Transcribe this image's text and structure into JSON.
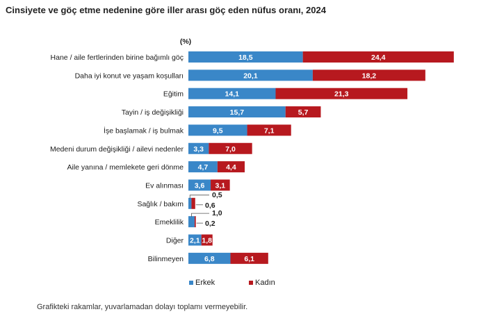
{
  "chart_data": {
    "type": "bar",
    "orientation": "horizontal",
    "stacked": true,
    "title": "Cinsiyete ve göç etme nedenine göre iller arası göç eden nüfus oranı, 2024",
    "unit_label": "(%)",
    "categories": [
      "Hane / aile fertlerinden birine bağımlı göç",
      "Daha iyi konut ve yaşam koşulları",
      "Eğitim",
      "Tayin / iş değişikliği",
      "İşe başlamak / iş bulmak",
      "Medeni durum değişikliği / ailevi nedenler",
      "Aile yanına / memlekete geri dönme",
      "Ev alınması",
      "Sağlık / bakım",
      "Emeklilik",
      "Diğer",
      "Bilinmeyen"
    ],
    "series": [
      {
        "name": "Erkek",
        "color": "#3a87c8",
        "values": [
          18.5,
          20.1,
          14.1,
          15.7,
          9.5,
          3.3,
          4.7,
          3.6,
          0.5,
          1.0,
          2.1,
          6.8
        ],
        "labels": [
          "18,5",
          "20,1",
          "14,1",
          "15,7",
          "9,5",
          "3,3",
          "4,7",
          "3,6",
          "0,5",
          "1,0",
          "2,1",
          "6,8"
        ]
      },
      {
        "name": "Kadın",
        "color": "#b7191f",
        "values": [
          24.4,
          18.2,
          21.3,
          5.7,
          7.1,
          7.0,
          4.4,
          3.1,
          0.6,
          0.2,
          1.8,
          6.1
        ],
        "labels": [
          "24,4",
          "18,2",
          "21,3",
          "5,7",
          "7,1",
          "7,0",
          "4,4",
          "3,1",
          "0,6",
          "0,2",
          "1,8",
          "6,1"
        ]
      }
    ],
    "legend_position": "bottom",
    "grid": false
  },
  "footnote": "Grafikteki rakamlar, yuvarlamadan dolayı toplamı vermeyebilir."
}
